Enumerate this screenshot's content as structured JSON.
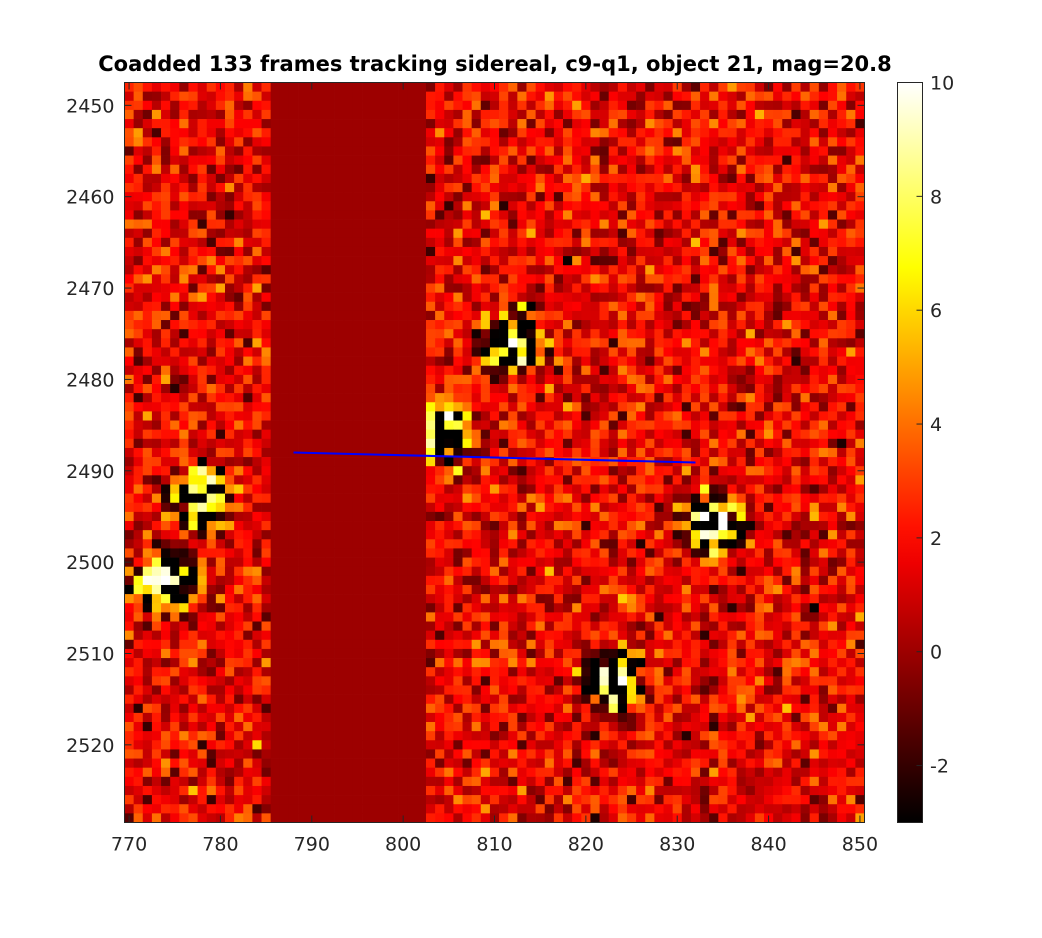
{
  "chart_data": {
    "type": "heatmap",
    "title": "Coadded 133 frames tracking sidereal, c9-q1, object 21, mag=20.8",
    "xlabel": "",
    "ylabel": "",
    "xlim": [
      770,
      851
    ],
    "ylim": [
      2448,
      2529
    ],
    "y_direction": "reversed",
    "x_ticks": [
      770,
      780,
      790,
      800,
      810,
      820,
      830,
      840,
      850
    ],
    "y_ticks": [
      2450,
      2460,
      2470,
      2480,
      2490,
      2500,
      2510,
      2520
    ],
    "colormap": "hot",
    "color_range": [
      -3,
      10
    ],
    "colorbar": {
      "ticks": [
        10,
        8,
        6,
        4,
        2,
        0,
        -2
      ]
    },
    "masked_column_range": [
      786,
      803
    ],
    "masked_value": 0,
    "sources": [
      {
        "x": 812,
        "y": 2476
      },
      {
        "x": 778,
        "y": 2493
      },
      {
        "x": 774,
        "y": 2502
      },
      {
        "x": 823,
        "y": 2513
      },
      {
        "x": 834,
        "y": 2496
      },
      {
        "x": 804,
        "y": 2486
      }
    ],
    "track_line": {
      "color": "#0000ff",
      "points": [
        {
          "x": 788.5,
          "y": 2488.5
        },
        {
          "x": 832.5,
          "y": 2489.6
        }
      ]
    }
  }
}
